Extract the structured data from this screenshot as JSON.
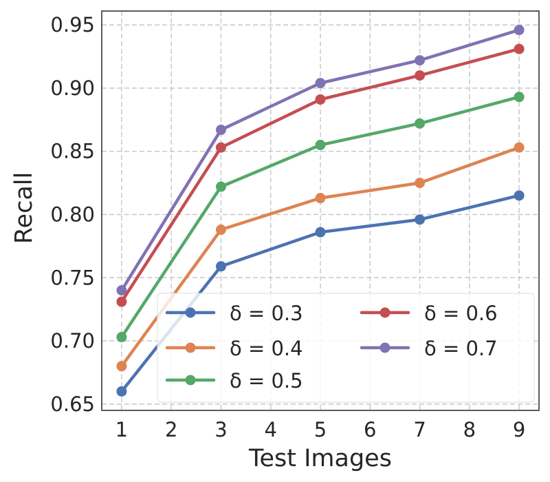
{
  "chart_data": {
    "type": "line",
    "title": "",
    "xlabel": "Test Images",
    "ylabel": "Recall",
    "x": [
      1,
      3,
      5,
      7,
      9
    ],
    "xticks": [
      "1",
      "2",
      "3",
      "4",
      "5",
      "6",
      "7",
      "8",
      "9"
    ],
    "yticks": [
      "0.65",
      "0.70",
      "0.75",
      "0.80",
      "0.85",
      "0.90",
      "0.95"
    ],
    "xlim": [
      0.6,
      9.4
    ],
    "ylim": [
      0.645,
      0.961
    ],
    "grid": true,
    "legend_position": "lower-right",
    "series": [
      {
        "name": "δ = 0.3",
        "color": "#4c72b0",
        "values": [
          0.66,
          0.759,
          0.786,
          0.796,
          0.815
        ]
      },
      {
        "name": "δ = 0.4",
        "color": "#dd8452",
        "values": [
          0.68,
          0.788,
          0.813,
          0.825,
          0.853
        ]
      },
      {
        "name": "δ = 0.5",
        "color": "#55a868",
        "values": [
          0.703,
          0.822,
          0.855,
          0.872,
          0.893
        ]
      },
      {
        "name": "δ = 0.6",
        "color": "#c44e52",
        "values": [
          0.731,
          0.853,
          0.891,
          0.91,
          0.931
        ]
      },
      {
        "name": "δ = 0.7",
        "color": "#8172b3",
        "values": [
          0.74,
          0.867,
          0.904,
          0.922,
          0.946
        ]
      }
    ]
  }
}
